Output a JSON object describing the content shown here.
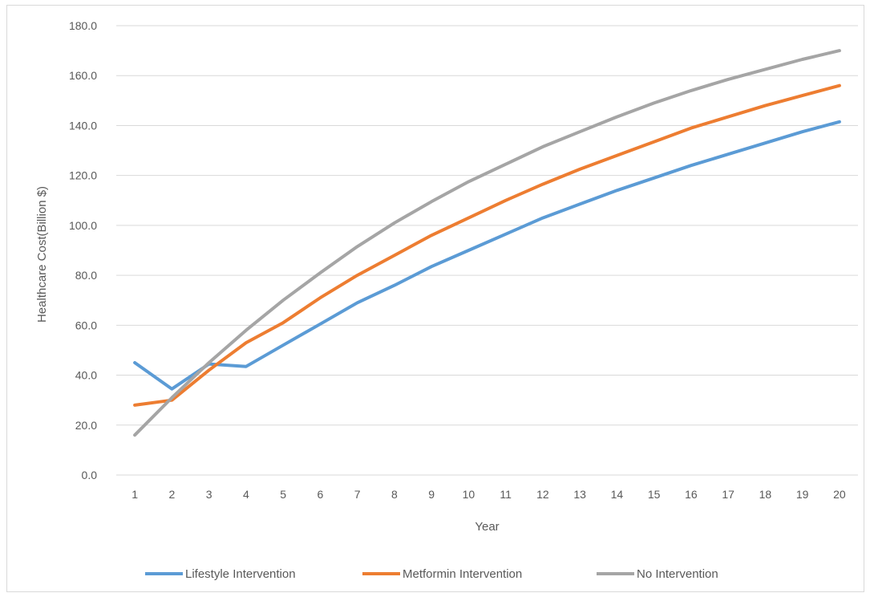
{
  "chart_data": {
    "type": "line",
    "title": "",
    "xlabel": "Year",
    "ylabel": "Healthcare Cost(Billion $)",
    "ylim": [
      0,
      180
    ],
    "ytick_step": 20,
    "ytick_labels": [
      "0.0",
      "20.0",
      "40.0",
      "60.0",
      "80.0",
      "100.0",
      "120.0",
      "140.0",
      "160.0",
      "180.0"
    ],
    "grid": true,
    "legend_position": "bottom",
    "x": [
      "1",
      "2",
      "3",
      "4",
      "5",
      "6",
      "7",
      "8",
      "9",
      "10",
      "11",
      "12",
      "13",
      "14",
      "15",
      "16",
      "17",
      "18",
      "19",
      "20"
    ],
    "series": [
      {
        "name": "Lifestyle Intervention",
        "color": "#5b9bd5",
        "values": [
          45,
          34.5,
          44.5,
          43.5,
          52,
          60.5,
          69,
          76,
          83.5,
          90,
          96.5,
          103,
          108.5,
          114,
          119,
          124,
          128.5,
          133,
          137.5,
          141.5
        ]
      },
      {
        "name": "Metformin Intervention",
        "color": "#ed7d31",
        "values": [
          28,
          30,
          42,
          53,
          61,
          71,
          80,
          88,
          96,
          103,
          110,
          116.5,
          122.5,
          128,
          133.5,
          139,
          143.5,
          148,
          152,
          156
        ]
      },
      {
        "name": "No Intervention",
        "color": "#a5a5a5",
        "values": [
          16,
          31,
          45,
          58,
          70,
          81,
          91.5,
          101,
          109.5,
          117.5,
          124.5,
          131.5,
          137.5,
          143.5,
          149,
          154,
          158.5,
          162.5,
          166.5,
          170
        ]
      }
    ]
  }
}
